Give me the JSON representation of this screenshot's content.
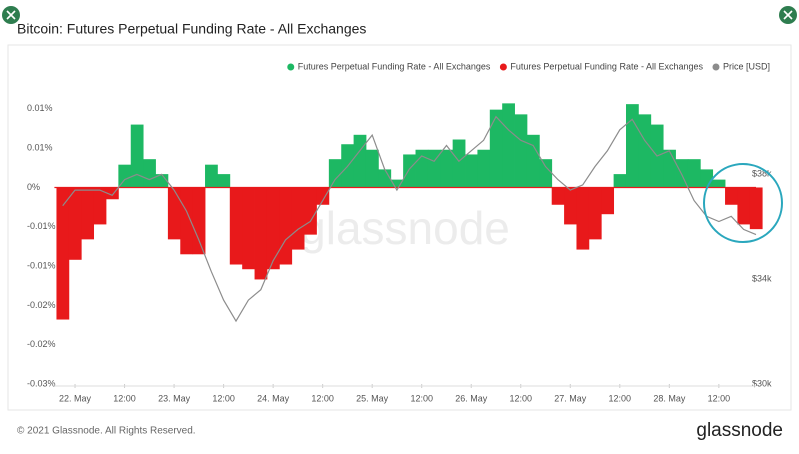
{
  "chart_data": {
    "type": "bar",
    "title": "Bitcoin: Futures Perpetual Funding Rate - All Exchanges",
    "watermark": "glassnode",
    "footer": "© 2021 Glassnode. All Rights Reserved.",
    "logo": "glassnode",
    "x": [
      -3,
      0,
      3,
      6,
      9,
      12,
      15,
      18,
      21,
      24,
      27,
      30,
      33,
      36,
      39,
      42,
      45,
      48,
      51,
      54,
      57,
      60,
      63,
      66,
      69,
      72,
      75,
      78,
      81,
      84,
      87,
      90,
      93,
      96,
      99,
      102,
      105,
      108,
      111,
      114,
      117,
      120,
      123,
      126,
      129,
      132,
      135,
      138,
      141,
      144,
      147,
      150,
      153,
      156,
      159,
      162,
      165
    ],
    "xlim": [
      -5,
      165
    ],
    "xticks": [
      {
        "value": 0,
        "label": "22. May"
      },
      {
        "value": 12,
        "label": "12:00"
      },
      {
        "value": 24,
        "label": "23. May"
      },
      {
        "value": 36,
        "label": "12:00"
      },
      {
        "value": 48,
        "label": "24. May"
      },
      {
        "value": 60,
        "label": "12:00"
      },
      {
        "value": 72,
        "label": "25. May"
      },
      {
        "value": 84,
        "label": "12:00"
      },
      {
        "value": 96,
        "label": "26. May"
      },
      {
        "value": 108,
        "label": "12:00"
      },
      {
        "value": 120,
        "label": "27. May"
      },
      {
        "value": 132,
        "label": "12:00"
      },
      {
        "value": 144,
        "label": "28. May"
      },
      {
        "value": 156,
        "label": "12:00"
      }
    ],
    "ylim": [
      -0.025,
      0.011
    ],
    "yticks": [
      {
        "value": 0.01,
        "label": "0.01%"
      },
      {
        "value": 0.005,
        "label": "0.01%"
      },
      {
        "value": 0,
        "label": "0%"
      },
      {
        "value": -0.005,
        "label": "-0.01%"
      },
      {
        "value": -0.01,
        "label": "-0.01%"
      },
      {
        "value": -0.015,
        "label": "-0.02%"
      },
      {
        "value": -0.02,
        "label": "-0.02%"
      },
      {
        "value": -0.025,
        "label": "-0.03%"
      }
    ],
    "y2lim": [
      30000,
      40800
    ],
    "y2ticks": [
      {
        "value": 38000,
        "label": "$38k"
      },
      {
        "value": 34000,
        "label": "$34k"
      },
      {
        "value": 30000,
        "label": "$30k"
      }
    ],
    "grid": false,
    "legend": "top-right",
    "series": [
      {
        "name": "Futures Perpetual Funding Rate - All Exchanges",
        "color": "#1db863",
        "values": [
          null,
          null,
          null,
          null,
          null,
          0.0029,
          0.008,
          0.0036,
          0.0017,
          null,
          null,
          null,
          0.0029,
          0.0017,
          null,
          null,
          null,
          null,
          null,
          null,
          null,
          null,
          0.0036,
          0.0055,
          0.0067,
          0.0048,
          0.0023,
          0.001,
          0.0042,
          0.0048,
          0.0048,
          0.0048,
          0.0061,
          0.0042,
          0.0048,
          0.0099,
          0.0107,
          0.0093,
          0.0067,
          0.0036,
          null,
          null,
          null,
          null,
          null,
          0.0017,
          0.0106,
          0.0093,
          0.008,
          0.0048,
          0.0036,
          0.0036,
          0.0023,
          0.001,
          null,
          null,
          null
        ]
      },
      {
        "name": "Futures Perpetual Funding Rate - All Exchanges",
        "color": "#e8191b",
        "values": [
          -0.0168,
          -0.0092,
          -0.0066,
          -0.0047,
          -0.0015,
          null,
          null,
          null,
          null,
          -0.0066,
          -0.0085,
          -0.0085,
          null,
          null,
          -0.0098,
          -0.0104,
          -0.0117,
          -0.0104,
          -0.0098,
          -0.0079,
          -0.006,
          -0.0022,
          null,
          null,
          null,
          null,
          null,
          null,
          null,
          null,
          null,
          null,
          null,
          null,
          null,
          null,
          null,
          null,
          null,
          null,
          -0.0022,
          -0.0047,
          -0.0079,
          -0.0066,
          -0.0034,
          null,
          null,
          null,
          null,
          null,
          null,
          null,
          null,
          null,
          -0.0022,
          -0.0047,
          -0.0053
        ]
      },
      {
        "name": "Price [USD]",
        "color": "#8c8c8c",
        "axis": "y2",
        "values": [
          36800,
          37400,
          37400,
          37400,
          37200,
          37800,
          38000,
          37800,
          38000,
          37400,
          36600,
          35500,
          34300,
          33200,
          32400,
          33200,
          33600,
          34700,
          35500,
          35900,
          36200,
          37000,
          37800,
          38300,
          38900,
          39500,
          38200,
          37400,
          38200,
          38700,
          38500,
          39100,
          38500,
          38900,
          39300,
          40200,
          39700,
          39300,
          39100,
          38300,
          37800,
          37400,
          37600,
          38300,
          38900,
          39700,
          40100,
          39300,
          38700,
          38900,
          38000,
          37000,
          36400,
          36200,
          36400,
          35900,
          35700
        ]
      }
    ]
  }
}
